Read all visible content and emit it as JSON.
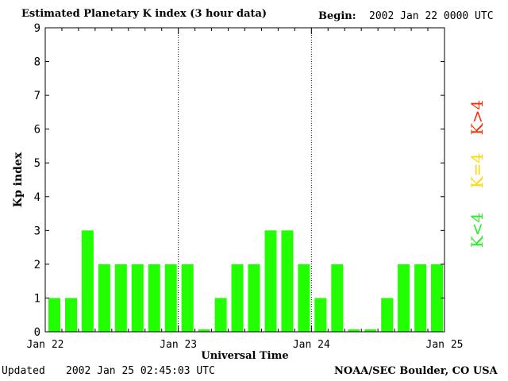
{
  "header": {
    "title": "Estimated Planetary K index (3 hour data)",
    "begin_label": "Begin:",
    "begin_value": "2002 Jan 22 0000 UTC"
  },
  "footer": {
    "updated_label": "Updated",
    "updated_value": "2002 Jan 25 02:45:03 UTC",
    "credit": "NOAA/SEC Boulder, CO USA"
  },
  "legend": [
    {
      "label": "K>4",
      "color": "#ff2a00"
    },
    {
      "label": "K=4",
      "color": "#ffd700"
    },
    {
      "label": "K<4",
      "color": "#22ee22"
    }
  ],
  "colors": {
    "bar_below_4": "#22ff00"
  },
  "chart_data": {
    "type": "bar",
    "title": "Estimated Planetary K index (3 hour data)",
    "xlabel": "Universal Time",
    "ylabel": "Kp index",
    "ylim": [
      0,
      9
    ],
    "yticks": [
      0,
      1,
      2,
      3,
      4,
      5,
      6,
      7,
      8,
      9
    ],
    "xlim": [
      "Jan 22",
      "Jan 25"
    ],
    "xticks": [
      "Jan 22",
      "Jan 23",
      "Jan 24",
      "Jan 25"
    ],
    "day_dividers": [
      "Jan 23",
      "Jan 24"
    ],
    "interval_hours": 3,
    "values": [
      1,
      1,
      3,
      2,
      2,
      2,
      2,
      2,
      2,
      0,
      1,
      2,
      2,
      3,
      3,
      2,
      1,
      2,
      0,
      0,
      1,
      2,
      2,
      2
    ]
  }
}
